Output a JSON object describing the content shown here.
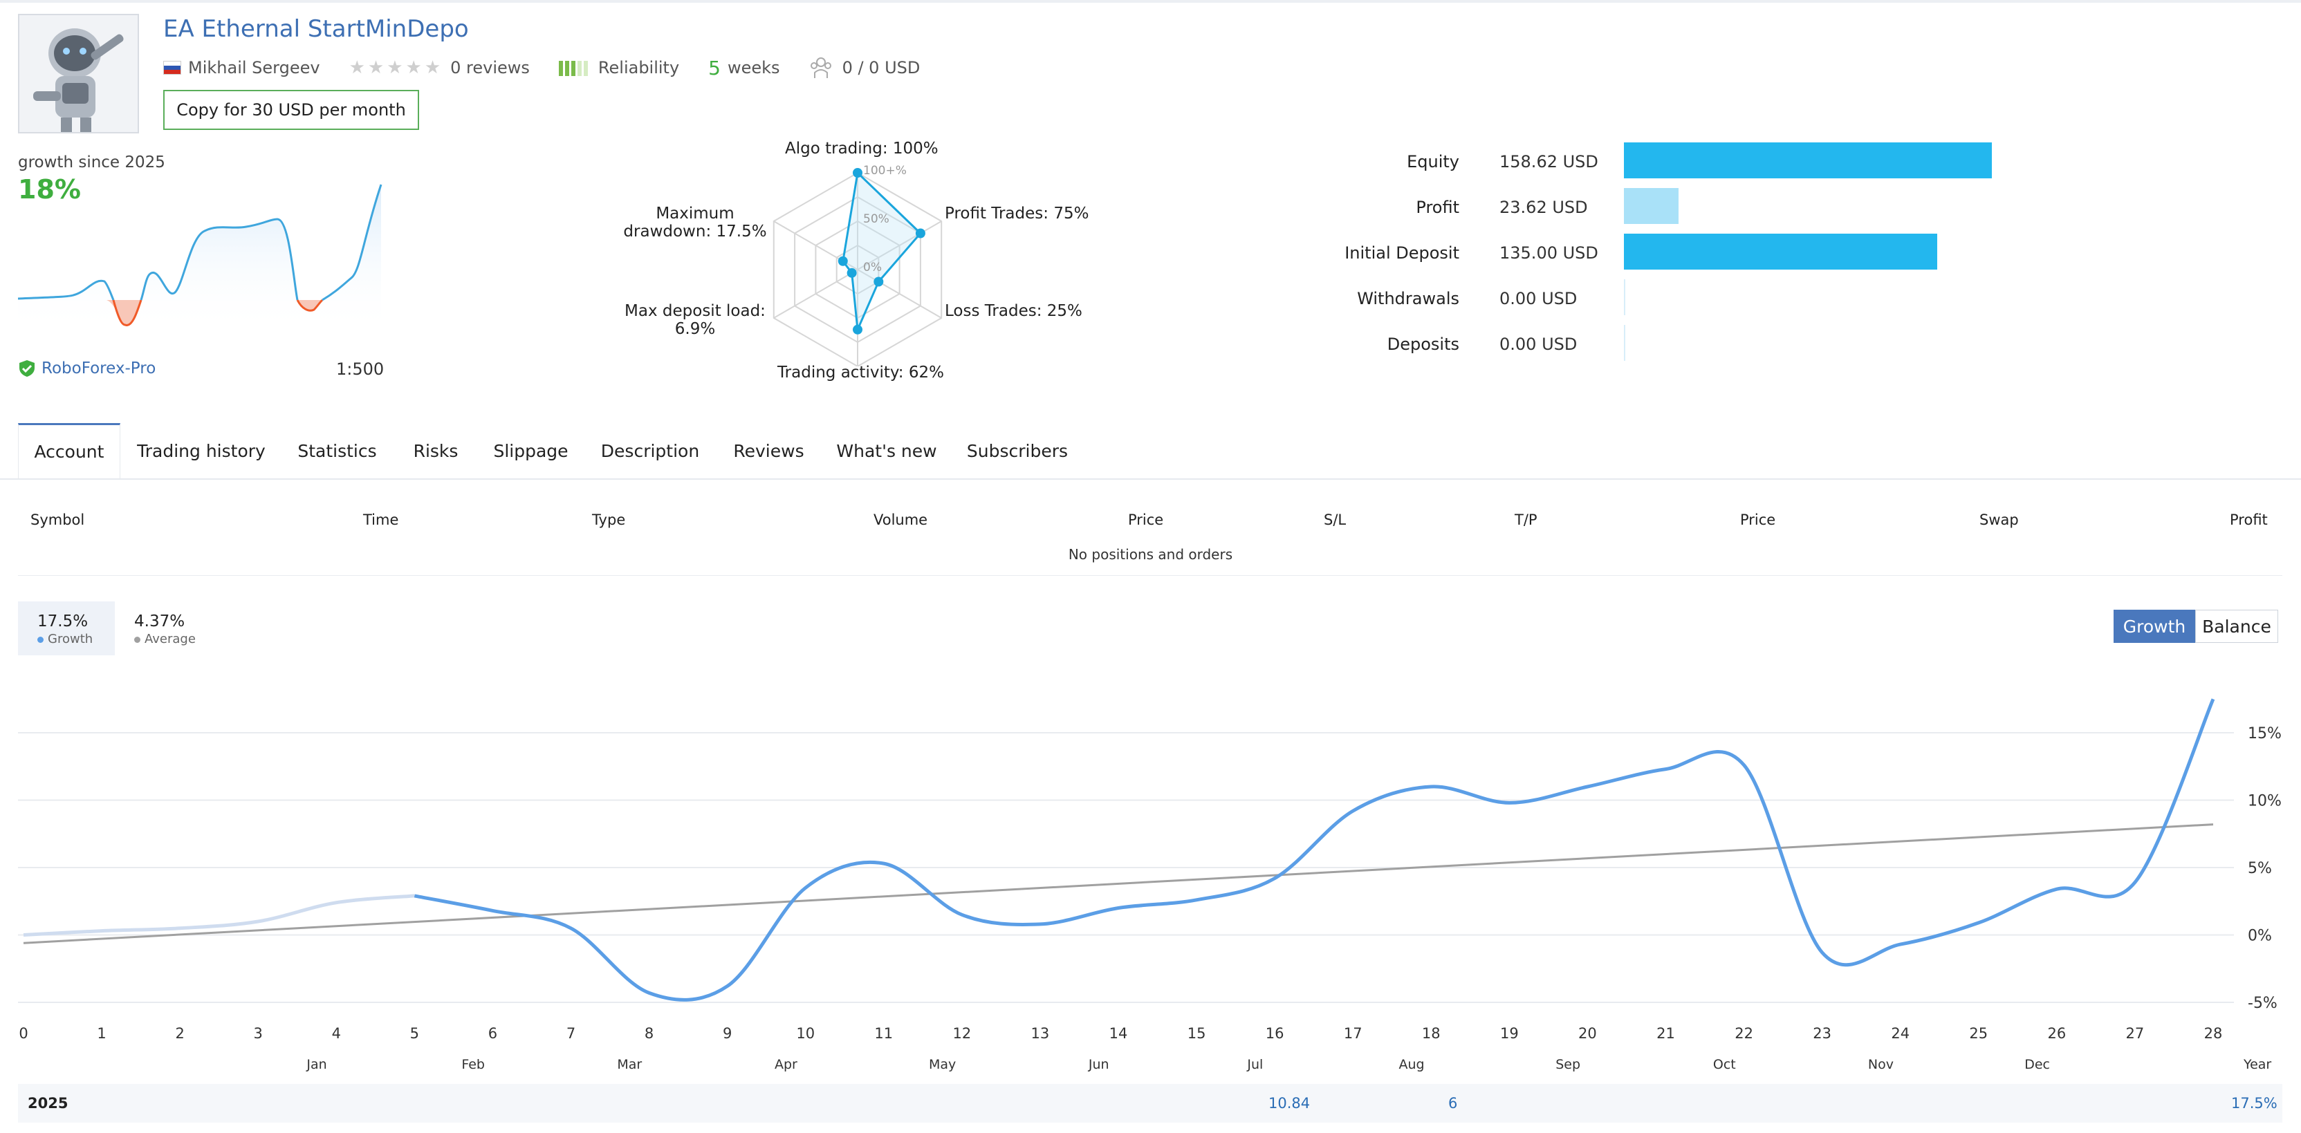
{
  "header": {
    "title": "EA Ethernal StartMinDepo",
    "author": "Mikhail Sergeev",
    "reviews": "0 reviews",
    "reliability": "Reliability",
    "weeks_num": "5",
    "weeks_label": "weeks",
    "subscribers_funds": "0 / 0 USD",
    "copy_button": "Copy for 30 USD per month"
  },
  "summary": {
    "growth_since": "growth since 2025",
    "growth_value": "18%",
    "broker": "RoboForex-Pro",
    "leverage": "1:500"
  },
  "radar": {
    "algo": "Algo trading: 100%",
    "profit_trades": "Profit Trades: 75%",
    "loss_trades": "Loss Trades: 25%",
    "activity": "Trading activity: 62%",
    "deposit_load_1": "Max deposit load:",
    "deposit_load_2": "6.9%",
    "drawdown_1": "Maximum",
    "drawdown_2": "drawdown: 17.5%",
    "ring_100": "100+%",
    "ring_50": "50%",
    "ring_0": "0%",
    "values": [
      1.0,
      0.75,
      0.25,
      0.62,
      0.069,
      0.175
    ]
  },
  "balance_bars": {
    "rows": [
      {
        "label": "Equity",
        "value": "158.62 USD",
        "amount": 158.62,
        "color": "#23b7ee"
      },
      {
        "label": "Profit",
        "value": "23.62 USD",
        "amount": 23.62,
        "color": "#a9e1f8"
      },
      {
        "label": "Initial Deposit",
        "value": "135.00 USD",
        "amount": 135.0,
        "color": "#23b7ee"
      },
      {
        "label": "Withdrawals",
        "value": "0.00 USD",
        "amount": 0,
        "color": "#23b7ee"
      },
      {
        "label": "Deposits",
        "value": "0.00 USD",
        "amount": 0,
        "color": "#23b7ee"
      }
    ]
  },
  "tabs": [
    "Account",
    "Trading history",
    "Statistics",
    "Risks",
    "Slippage",
    "Description",
    "Reviews",
    "What's new",
    "Subscribers"
  ],
  "positions": {
    "headers": [
      "Symbol",
      "Time",
      "Type",
      "Volume",
      "Price",
      "S/L",
      "T/P",
      "Price",
      "Swap",
      "Profit"
    ],
    "empty": "No positions and orders"
  },
  "chart_legend": {
    "growth_val": "17.5%",
    "growth_label": "Growth",
    "avg_val": "4.37%",
    "avg_label": "Average",
    "btn_growth": "Growth",
    "btn_balance": "Balance"
  },
  "chart_data": {
    "type": "line",
    "x_ticks": [
      "0",
      "1",
      "2",
      "3",
      "4",
      "5",
      "6",
      "7",
      "8",
      "9",
      "10",
      "11",
      "12",
      "13",
      "14",
      "15",
      "16",
      "17",
      "18",
      "19",
      "20",
      "21",
      "22",
      "23",
      "24",
      "25",
      "26",
      "27",
      "28"
    ],
    "months": [
      "Jan",
      "Feb",
      "Mar",
      "Apr",
      "May",
      "Jun",
      "Jul",
      "Aug",
      "Sep",
      "Oct",
      "Nov",
      "Dec"
    ],
    "y_ticks": [
      "15%",
      "10%",
      "5%",
      "0%",
      "-5%"
    ],
    "ylim": [
      -5,
      15
    ],
    "year_label": "Year",
    "series": [
      {
        "name": "Growth",
        "x": [
          0,
          1,
          2,
          3,
          4,
          5,
          6,
          7,
          8,
          9,
          10,
          11,
          12,
          13,
          14,
          15,
          16,
          17,
          18,
          19,
          20,
          21,
          22,
          23,
          24,
          25,
          26,
          27,
          28
        ],
        "values": [
          0,
          0.3,
          0.5,
          1.0,
          2.4,
          2.9,
          1.8,
          0.5,
          -4.3,
          -3.8,
          3.5,
          5.3,
          1.5,
          0.8,
          2.0,
          2.6,
          4.2,
          9.2,
          11.0,
          9.8,
          11.0,
          12.3,
          12.6,
          -1.3,
          -0.7,
          0.9,
          3.4,
          3.9,
          17.5
        ],
        "color": "#5b9ee6"
      },
      {
        "name": "Average",
        "x": [
          0,
          28
        ],
        "values": [
          -0.6,
          8.2
        ],
        "color": "#a0a0a0"
      }
    ],
    "year_row": {
      "year": "2025",
      "jul": "10.84",
      "aug": "6",
      "total": "17.5%"
    }
  }
}
